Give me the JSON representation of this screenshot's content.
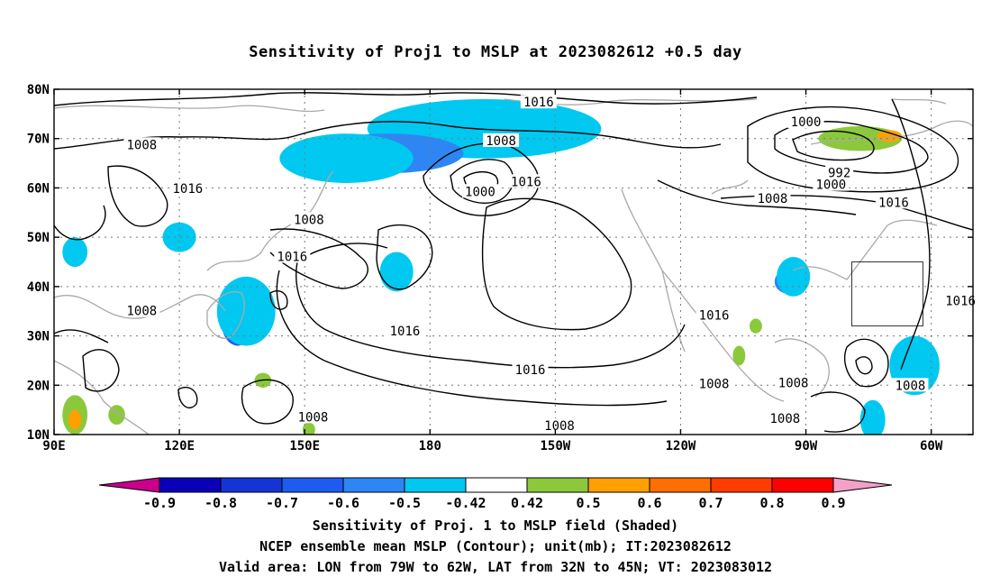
{
  "title": "Sensitivity of Proj1 to MSLP at 2023082612 +0.5 day",
  "map": {
    "lat_ticks": [
      "80N",
      "70N",
      "60N",
      "50N",
      "40N",
      "30N",
      "20N",
      "10N"
    ],
    "lon_ticks": [
      "90E",
      "120E",
      "150E",
      "180",
      "150W",
      "120W",
      "90W",
      "60W"
    ],
    "extent": {
      "lon_min": 90,
      "lon_max": 310,
      "lat_min": 10,
      "lat_max": 80
    },
    "gridlines": "dotted",
    "contour_labels": [
      {
        "text": "1016",
        "lon": 206,
        "lat": 77.4
      },
      {
        "text": "1000",
        "lon": 270,
        "lat": 73.4
      },
      {
        "text": "1008",
        "lon": 111,
        "lat": 68.8
      },
      {
        "text": "1008",
        "lon": 197,
        "lat": 69.6
      },
      {
        "text": "992",
        "lon": 278,
        "lat": 63.1
      },
      {
        "text": "1000",
        "lon": 276,
        "lat": 60.7
      },
      {
        "text": "1016",
        "lon": 122,
        "lat": 59.9
      },
      {
        "text": "1000",
        "lon": 192,
        "lat": 59.3
      },
      {
        "text": "1016",
        "lon": 203,
        "lat": 61.3
      },
      {
        "text": "1008",
        "lon": 262,
        "lat": 57.9
      },
      {
        "text": "1016",
        "lon": 291,
        "lat": 57.1
      },
      {
        "text": "1008",
        "lon": 151,
        "lat": 53.6
      },
      {
        "text": "1016",
        "lon": 147,
        "lat": 46.1
      },
      {
        "text": "1016",
        "lon": 307,
        "lat": 37.1
      },
      {
        "text": "1016",
        "lon": 248,
        "lat": 34.2
      },
      {
        "text": "1008",
        "lon": 111,
        "lat": 35.1
      },
      {
        "text": "1016",
        "lon": 174,
        "lat": 31.0
      },
      {
        "text": "1016",
        "lon": 204,
        "lat": 23.2
      },
      {
        "text": "1008",
        "lon": 248,
        "lat": 20.3
      },
      {
        "text": "1008",
        "lon": 267,
        "lat": 20.5
      },
      {
        "text": "1008",
        "lon": 295,
        "lat": 20.0
      },
      {
        "text": "1008",
        "lon": 152,
        "lat": 13.6
      },
      {
        "text": "1008",
        "lon": 265,
        "lat": 13.3
      },
      {
        "text": "1008",
        "lon": 211,
        "lat": 11.8
      }
    ],
    "valid_box": {
      "lon_min": 281,
      "lon_max": 298,
      "lat_min": 32,
      "lat_max": 45
    }
  },
  "colorbar": {
    "labels": [
      "-0.9",
      "-0.8",
      "-0.7",
      "-0.6",
      "-0.5",
      "-0.42",
      "0.42",
      "0.5",
      "0.6",
      "0.7",
      "0.8",
      "0.9"
    ],
    "colors": [
      "#0a00b8",
      "#1434d4",
      "#1e5cf0",
      "#2e86f5",
      "#00c8f0",
      "#ffffff",
      "#8cc83c",
      "#ffa000",
      "#ff6e00",
      "#ff3c00",
      "#ff0000"
    ],
    "low_end_color": "#c8008c",
    "high_end_color": "#f5a0c8"
  },
  "shading": [
    {
      "color": "#1e5cf0",
      "lon": 193,
      "lat": 72,
      "rx": 22,
      "ry": 5
    },
    {
      "color": "#00c8f0",
      "lon": 193,
      "lat": 72,
      "rx": 28,
      "ry": 6
    },
    {
      "color": "#2e86f5",
      "lon": 170,
      "lat": 67,
      "rx": 18,
      "ry": 4
    },
    {
      "color": "#00c8f0",
      "lon": 160,
      "lat": 66,
      "rx": 16,
      "ry": 5
    },
    {
      "color": "#1e5cf0",
      "lon": 134,
      "lat": 33,
      "rx": 4,
      "ry": 5
    },
    {
      "color": "#00c8f0",
      "lon": 136,
      "lat": 35,
      "rx": 7,
      "ry": 7
    },
    {
      "color": "#00c8f0",
      "lon": 172,
      "lat": 43,
      "rx": 4,
      "ry": 4
    },
    {
      "color": "#2e86f5",
      "lon": 266,
      "lat": 41,
      "rx": 3.5,
      "ry": 2.5
    },
    {
      "color": "#00c8f0",
      "lon": 267,
      "lat": 42,
      "rx": 4,
      "ry": 4
    },
    {
      "color": "#1e5cf0",
      "lon": 296,
      "lat": 23,
      "rx": 3,
      "ry": 2.5
    },
    {
      "color": "#00c8f0",
      "lon": 296,
      "lat": 24,
      "rx": 6,
      "ry": 6
    },
    {
      "color": "#00c8f0",
      "lon": 286,
      "lat": 13,
      "rx": 3,
      "ry": 4
    },
    {
      "color": "#00c8f0",
      "lon": 95,
      "lat": 47,
      "rx": 3,
      "ry": 3
    },
    {
      "color": "#00c8f0",
      "lon": 120,
      "lat": 50,
      "rx": 4,
      "ry": 3
    },
    {
      "color": "#8cc83c",
      "lon": 283,
      "lat": 70,
      "rx": 10,
      "ry": 2.5
    },
    {
      "color": "#ffa000",
      "lon": 290,
      "lat": 70.5,
      "rx": 3,
      "ry": 1.2
    },
    {
      "color": "#8cc83c",
      "lon": 95,
      "lat": 14,
      "rx": 3,
      "ry": 4
    },
    {
      "color": "#ffa000",
      "lon": 95,
      "lat": 13,
      "rx": 1.5,
      "ry": 2
    },
    {
      "color": "#8cc83c",
      "lon": 105,
      "lat": 14,
      "rx": 2,
      "ry": 2
    },
    {
      "color": "#8cc83c",
      "lon": 140,
      "lat": 21,
      "rx": 2,
      "ry": 1.5
    },
    {
      "color": "#8cc83c",
      "lon": 254,
      "lat": 26,
      "rx": 1.5,
      "ry": 2
    },
    {
      "color": "#8cc83c",
      "lon": 258,
      "lat": 32,
      "rx": 1.5,
      "ry": 1.5
    },
    {
      "color": "#8cc83c",
      "lon": 151,
      "lat": 11,
      "rx": 1.5,
      "ry": 1.5
    }
  ],
  "footer": {
    "line1": "Sensitivity of Proj. 1 to MSLP field (Shaded)",
    "line2": "NCEP ensemble mean MSLP (Contour); unit(mb); IT:2023082612",
    "line3": "Valid area: LON from 79W to 62W, LAT from 32N to 45N; VT: 2023083012"
  }
}
